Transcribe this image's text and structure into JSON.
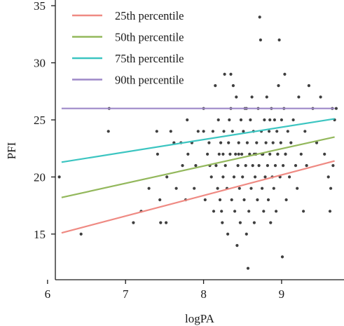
{
  "chart_data": {
    "type": "scatter",
    "xlabel": "logPA",
    "ylabel": "PFI",
    "xlim": [
      6.1,
      9.8
    ],
    "ylim": [
      11,
      35.5
    ],
    "x_ticks": [
      6,
      7,
      8,
      9
    ],
    "y_ticks": [
      15,
      20,
      25,
      30,
      35
    ],
    "grid": false,
    "legend_position": "top-left",
    "point_color": "#3f3f3f",
    "series": [
      {
        "name": "25th percentile",
        "color": "#ef8a83",
        "x": [
          6.18,
          9.68
        ],
        "y": [
          15.1,
          21.4
        ]
      },
      {
        "name": "50th percentile",
        "color": "#93b85c",
        "x": [
          6.18,
          9.68
        ],
        "y": [
          18.2,
          23.5
        ]
      },
      {
        "name": "75th percentile",
        "color": "#3cc5c1",
        "x": [
          6.18,
          9.68
        ],
        "y": [
          21.3,
          25.1
        ]
      },
      {
        "name": "90th percentile",
        "color": "#9e88c8",
        "x": [
          6.18,
          9.68
        ],
        "y": [
          26.0,
          26.0
        ]
      }
    ],
    "points": [
      [
        6.15,
        20
      ],
      [
        6.43,
        15
      ],
      [
        6.79,
        26
      ],
      [
        6.78,
        24
      ],
      [
        7.1,
        16
      ],
      [
        7.2,
        17
      ],
      [
        7.3,
        19
      ],
      [
        7.4,
        24
      ],
      [
        7.41,
        22
      ],
      [
        7.44,
        18
      ],
      [
        7.45,
        16
      ],
      [
        7.52,
        16
      ],
      [
        7.53,
        20
      ],
      [
        7.58,
        24
      ],
      [
        7.62,
        23
      ],
      [
        7.65,
        19
      ],
      [
        7.71,
        23
      ],
      [
        7.73,
        21
      ],
      [
        7.77,
        18
      ],
      [
        7.79,
        25
      ],
      [
        7.8,
        22
      ],
      [
        7.85,
        23
      ],
      [
        7.88,
        19
      ],
      [
        7.9,
        21
      ],
      [
        7.93,
        24
      ],
      [
        8.0,
        26
      ],
      [
        8.0,
        24
      ],
      [
        8.02,
        18
      ],
      [
        8.05,
        22
      ],
      [
        8.07,
        23
      ],
      [
        8.08,
        21
      ],
      [
        8.1,
        20
      ],
      [
        8.12,
        24
      ],
      [
        8.13,
        17
      ],
      [
        8.16,
        21
      ],
      [
        8.18,
        19
      ],
      [
        8.19,
        25
      ],
      [
        8.2,
        22
      ],
      [
        8.21,
        18
      ],
      [
        8.22,
        23
      ],
      [
        8.23,
        17
      ],
      [
        8.24,
        16
      ],
      [
        8.25,
        20
      ],
      [
        8.26,
        24
      ],
      [
        8.27,
        29
      ],
      [
        8.28,
        21
      ],
      [
        8.3,
        19
      ],
      [
        8.31,
        15
      ],
      [
        8.32,
        23
      ],
      [
        8.33,
        25
      ],
      [
        8.34,
        22
      ],
      [
        8.35,
        26
      ],
      [
        8.36,
        18
      ],
      [
        8.37,
        24
      ],
      [
        8.38,
        28
      ],
      [
        8.39,
        20
      ],
      [
        8.4,
        17
      ],
      [
        8.41,
        22
      ],
      [
        8.42,
        27
      ],
      [
        8.43,
        14
      ],
      [
        8.44,
        21
      ],
      [
        8.45,
        23
      ],
      [
        8.46,
        19
      ],
      [
        8.47,
        16
      ],
      [
        8.48,
        25
      ],
      [
        8.49,
        22
      ],
      [
        8.5,
        20
      ],
      [
        8.51,
        24
      ],
      [
        8.52,
        18
      ],
      [
        8.53,
        26
      ],
      [
        8.54,
        21
      ],
      [
        8.55,
        15
      ],
      [
        8.56,
        23
      ],
      [
        8.57,
        12
      ],
      [
        8.58,
        17
      ],
      [
        8.59,
        22
      ],
      [
        8.6,
        25
      ],
      [
        8.61,
        19
      ],
      [
        8.62,
        27
      ],
      [
        8.63,
        21
      ],
      [
        8.64,
        24
      ],
      [
        8.65,
        16
      ],
      [
        8.66,
        20
      ],
      [
        8.67,
        22
      ],
      [
        8.68,
        23
      ],
      [
        8.69,
        18
      ],
      [
        8.7,
        26
      ],
      [
        8.71,
        21
      ],
      [
        8.72,
        34
      ],
      [
        8.73,
        32
      ],
      [
        8.74,
        24
      ],
      [
        8.75,
        19
      ],
      [
        8.76,
        22
      ],
      [
        8.77,
        17
      ],
      [
        8.78,
        25
      ],
      [
        8.79,
        20
      ],
      [
        8.8,
        23
      ],
      [
        8.81,
        27
      ],
      [
        8.82,
        21
      ],
      [
        8.83,
        18
      ],
      [
        8.84,
        24
      ],
      [
        8.85,
        22
      ],
      [
        8.86,
        16
      ],
      [
        8.87,
        26
      ],
      [
        8.88,
        20
      ],
      [
        8.89,
        23
      ],
      [
        8.9,
        19
      ],
      [
        8.91,
        25
      ],
      [
        8.92,
        21
      ],
      [
        8.93,
        17
      ],
      [
        8.94,
        24
      ],
      [
        8.95,
        22
      ],
      [
        8.96,
        28
      ],
      [
        8.97,
        32
      ],
      [
        8.98,
        20
      ],
      [
        8.99,
        23
      ],
      [
        9.0,
        25
      ],
      [
        9.01,
        13
      ],
      [
        9.02,
        21
      ],
      [
        9.03,
        26
      ],
      [
        9.04,
        29
      ],
      [
        9.05,
        22
      ],
      [
        9.06,
        18
      ],
      [
        9.08,
        24
      ],
      [
        9.1,
        20
      ],
      [
        9.12,
        23
      ],
      [
        9.15,
        25
      ],
      [
        9.18,
        21
      ],
      [
        9.2,
        19
      ],
      [
        9.22,
        27
      ],
      [
        9.25,
        22
      ],
      [
        9.28,
        17
      ],
      [
        9.3,
        24
      ],
      [
        9.32,
        21
      ],
      [
        9.35,
        28
      ],
      [
        9.4,
        26
      ],
      [
        9.45,
        23
      ],
      [
        9.5,
        27
      ],
      [
        9.55,
        22
      ],
      [
        9.6,
        20
      ],
      [
        9.62,
        17
      ],
      [
        9.63,
        19
      ],
      [
        9.65,
        26
      ],
      [
        9.66,
        21
      ],
      [
        9.68,
        25
      ],
      [
        9.7,
        26
      ],
      [
        8.15,
        28
      ],
      [
        8.35,
        29
      ],
      [
        8.55,
        26
      ],
      [
        8.85,
        25
      ],
      [
        9.05,
        22
      ],
      [
        8.45,
        22
      ],
      [
        8.65,
        22
      ],
      [
        8.75,
        22
      ],
      [
        8.25,
        22
      ],
      [
        8.95,
        22
      ]
    ]
  }
}
